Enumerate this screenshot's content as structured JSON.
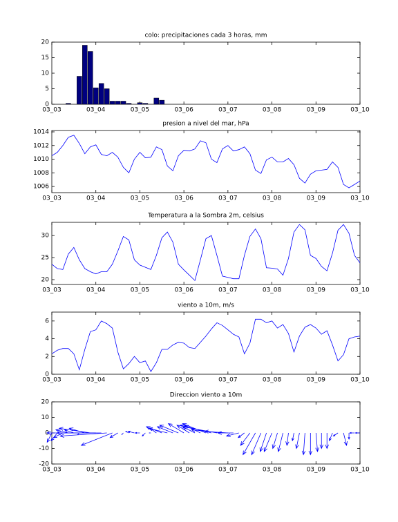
{
  "chart_data": [
    {
      "type": "bar",
      "title": "colo: precipitaciones cada 3 horas, mm",
      "color": "#000080",
      "x": [
        0.375,
        0.625,
        0.75,
        0.875,
        1,
        1.125,
        1.25,
        1.375,
        1.5,
        1.625,
        1.75,
        2,
        2.125,
        2.375,
        2.5
      ],
      "values": [
        0.3,
        9,
        19,
        17,
        5.3,
        6.7,
        5,
        1,
        1,
        1,
        0.3,
        0.5,
        0.3,
        2,
        1.3
      ],
      "xlim": [
        0,
        7
      ],
      "xticks": [
        {
          "value": 0,
          "label": "03_03"
        },
        {
          "value": 1,
          "label": "03_04"
        },
        {
          "value": 2,
          "label": "03_05"
        },
        {
          "value": 3,
          "label": "03_06"
        },
        {
          "value": 4,
          "label": "03_07"
        },
        {
          "value": 5,
          "label": "03_08"
        },
        {
          "value": 6,
          "label": "03_09"
        },
        {
          "value": 7,
          "label": "03_10"
        }
      ],
      "ylim": [
        0,
        20
      ],
      "yticks": [
        0,
        5,
        10,
        15,
        20
      ]
    },
    {
      "type": "line",
      "title": "presion a nivel del mar, hPa",
      "color": "#0000ff",
      "x": [
        0,
        0.125,
        0.25,
        0.375,
        0.5,
        0.625,
        0.75,
        0.875,
        1,
        1.125,
        1.25,
        1.375,
        1.5,
        1.625,
        1.75,
        1.875,
        2,
        2.125,
        2.25,
        2.375,
        2.5,
        2.625,
        2.75,
        2.875,
        3,
        3.125,
        3.25,
        3.375,
        3.5,
        3.625,
        3.75,
        3.875,
        4,
        4.125,
        4.25,
        4.375,
        4.5,
        4.625,
        4.75,
        4.875,
        5,
        5.125,
        5.25,
        5.375,
        5.5,
        5.625,
        5.75,
        5.875,
        6,
        6.125,
        6.25,
        6.375,
        6.5,
        6.625,
        6.75,
        6.875,
        7
      ],
      "values": [
        1010.5,
        1011,
        1012,
        1013.2,
        1013.5,
        1012.3,
        1010.8,
        1011.8,
        1012.1,
        1010.7,
        1010.5,
        1011,
        1010.3,
        1008.8,
        1008,
        1010,
        1011,
        1010.2,
        1010.3,
        1011.8,
        1011.4,
        1009,
        1008.3,
        1010.5,
        1011.3,
        1011.2,
        1011.5,
        1012.7,
        1012.4,
        1010,
        1009.5,
        1011.5,
        1012,
        1011.2,
        1011.4,
        1011.8,
        1010.8,
        1008.4,
        1007.9,
        1009.9,
        1010.3,
        1009.6,
        1009.6,
        1010.1,
        1009.2,
        1007.2,
        1006.5,
        1007.8,
        1008.3,
        1008.4,
        1008.5,
        1009.6,
        1008.8,
        1006.3,
        1005.8,
        1006.3,
        1006.8
      ],
      "xlim": [
        0,
        7
      ],
      "xticks": [
        {
          "value": 0,
          "label": "03_03"
        },
        {
          "value": 1,
          "label": "03_04"
        },
        {
          "value": 2,
          "label": "03_05"
        },
        {
          "value": 3,
          "label": "03_06"
        },
        {
          "value": 4,
          "label": "03_07"
        },
        {
          "value": 5,
          "label": "03_08"
        },
        {
          "value": 6,
          "label": "03_09"
        },
        {
          "value": 7,
          "label": "03_10"
        }
      ],
      "ylim": [
        1005.1,
        1014.2
      ],
      "yticks": [
        1006,
        1008,
        1010,
        1012,
        1014
      ]
    },
    {
      "type": "line",
      "title": "Temperatura a la Sombra 2m, celsius",
      "color": "#0000ff",
      "x": [
        0,
        0.125,
        0.25,
        0.375,
        0.5,
        0.625,
        0.75,
        0.875,
        1,
        1.125,
        1.25,
        1.375,
        1.5,
        1.625,
        1.75,
        1.875,
        2,
        2.125,
        2.25,
        2.375,
        2.5,
        2.625,
        2.75,
        2.875,
        3,
        3.125,
        3.25,
        3.375,
        3.5,
        3.625,
        3.75,
        3.875,
        4,
        4.125,
        4.25,
        4.375,
        4.5,
        4.625,
        4.75,
        4.875,
        5,
        5.125,
        5.25,
        5.375,
        5.5,
        5.625,
        5.75,
        5.875,
        6,
        6.125,
        6.25,
        6.375,
        6.5,
        6.625,
        6.75,
        6.875,
        7
      ],
      "values": [
        23.5,
        22.5,
        22.3,
        25.8,
        27.3,
        24.5,
        22.5,
        21.8,
        21.3,
        21.8,
        21.8,
        23.5,
        26.5,
        29.8,
        29,
        24.5,
        23.3,
        22.8,
        22.3,
        25.5,
        29.5,
        30.8,
        28.5,
        23.5,
        22.2,
        21,
        19.8,
        24.5,
        29.3,
        30,
        25.5,
        20.8,
        20.5,
        20.2,
        20.2,
        25.5,
        29.8,
        31.5,
        29.3,
        22.7,
        22.6,
        22.4,
        21,
        24.8,
        30.8,
        32.5,
        31.3,
        25.5,
        24.8,
        23,
        22,
        26,
        31.2,
        32.5,
        30.5,
        25.5,
        23.8
      ],
      "xlim": [
        0,
        7
      ],
      "xticks": [
        {
          "value": 0,
          "label": "03_03"
        },
        {
          "value": 1,
          "label": "03_04"
        },
        {
          "value": 2,
          "label": "03_05"
        },
        {
          "value": 3,
          "label": "03_06"
        },
        {
          "value": 4,
          "label": "03_07"
        },
        {
          "value": 5,
          "label": "03_08"
        },
        {
          "value": 6,
          "label": "03_09"
        },
        {
          "value": 7,
          "label": "03_10"
        }
      ],
      "ylim": [
        18.9,
        33
      ],
      "yticks": [
        20,
        25,
        30
      ]
    },
    {
      "type": "line",
      "title": "viento a 10m, m/s",
      "color": "#0000ff",
      "x": [
        0,
        0.125,
        0.25,
        0.375,
        0.5,
        0.625,
        0.75,
        0.875,
        1,
        1.125,
        1.25,
        1.375,
        1.5,
        1.625,
        1.75,
        1.875,
        2,
        2.125,
        2.25,
        2.375,
        2.5,
        2.625,
        2.75,
        2.875,
        3,
        3.125,
        3.25,
        3.375,
        3.5,
        3.625,
        3.75,
        3.875,
        4,
        4.125,
        4.25,
        4.375,
        4.5,
        4.625,
        4.75,
        4.875,
        5,
        5.125,
        5.25,
        5.375,
        5.5,
        5.625,
        5.75,
        5.875,
        6,
        6.125,
        6.25,
        6.375,
        6.5,
        6.625,
        6.75,
        6.875,
        7
      ],
      "values": [
        2.3,
        2.7,
        2.9,
        2.9,
        2.3,
        0.5,
        2.8,
        4.8,
        5.0,
        6.0,
        5.7,
        5.2,
        2.5,
        0.6,
        1.2,
        2.0,
        1.3,
        1.5,
        0.3,
        1.3,
        2.8,
        2.8,
        3.3,
        3.6,
        3.5,
        3.0,
        2.9,
        3.6,
        4.3,
        5.1,
        5.8,
        5.5,
        5.0,
        4.5,
        4.2,
        2.3,
        3.5,
        6.2,
        6.2,
        5.8,
        6.0,
        5.2,
        5.6,
        4.6,
        2.5,
        4.3,
        5.3,
        5.6,
        5.2,
        4.5,
        4.9,
        3.3,
        1.5,
        2.2,
        4.0,
        4.2,
        4.3
      ],
      "xlim": [
        0,
        7
      ],
      "xticks": [
        {
          "value": 0,
          "label": "03_03"
        },
        {
          "value": 1,
          "label": "03_04"
        },
        {
          "value": 2,
          "label": "03_05"
        },
        {
          "value": 3,
          "label": "03_06"
        },
        {
          "value": 4,
          "label": "03_07"
        },
        {
          "value": 5,
          "label": "03_08"
        },
        {
          "value": 6,
          "label": "03_09"
        },
        {
          "value": 7,
          "label": "03_10"
        }
      ],
      "ylim": [
        0,
        7
      ],
      "yticks": [
        0,
        2,
        4,
        6
      ]
    },
    {
      "type": "quiver",
      "title": "Direccion viento a 10m",
      "color": "#0000ff",
      "x": [
        0,
        0.125,
        0.25,
        0.375,
        0.5,
        0.625,
        0.75,
        0.875,
        1,
        1.125,
        1.25,
        1.375,
        1.5,
        1.625,
        1.75,
        1.875,
        2,
        2.125,
        2.25,
        2.375,
        2.5,
        2.625,
        2.75,
        2.875,
        3,
        3.125,
        3.25,
        3.375,
        3.5,
        3.625,
        3.75,
        3.875,
        4,
        4.125,
        4.25,
        4.375,
        4.5,
        4.625,
        4.75,
        4.875,
        5,
        5.125,
        5.25,
        5.375,
        5.5,
        5.625,
        5.75,
        5.875,
        6,
        6.125,
        6.25,
        6.375,
        6.5,
        6.625,
        6.75,
        6.875,
        7
      ],
      "u": [
        -3,
        -4,
        -6,
        -8,
        -6,
        -1,
        -10,
        -20,
        -25,
        -35,
        -30,
        -20,
        -5,
        -1,
        -2,
        -4,
        -3,
        -2,
        -1,
        -4,
        -10,
        -12,
        -10,
        -12,
        -10,
        -8,
        -8,
        -10,
        -15,
        -20,
        -22,
        -20,
        -15,
        -10,
        -8,
        -4,
        -6,
        -8,
        -6,
        -4,
        -5,
        -3,
        -3,
        -1,
        -1,
        -2,
        -1,
        0,
        1,
        0,
        0,
        -2,
        -3,
        2,
        0,
        -3,
        -3
      ],
      "v": [
        -6,
        -5,
        -3,
        2,
        2,
        -1,
        3,
        3,
        0,
        0,
        -2,
        -8,
        -3,
        -1,
        1,
        1,
        0,
        -2,
        0,
        3,
        4,
        3,
        4,
        5,
        6,
        5,
        4,
        5,
        6,
        5,
        4,
        2,
        1,
        0,
        -2,
        -3,
        -8,
        -14,
        -14,
        -12,
        -12,
        -10,
        -12,
        -8,
        -5,
        -10,
        -14,
        -14,
        -12,
        -10,
        -10,
        -5,
        -2,
        -8,
        -4,
        0,
        0
      ],
      "xlim": [
        0,
        7
      ],
      "xticks": [
        {
          "value": 0,
          "label": "03_03"
        },
        {
          "value": 1,
          "label": "03_04"
        },
        {
          "value": 2,
          "label": "03_05"
        },
        {
          "value": 3,
          "label": "03_06"
        },
        {
          "value": 4,
          "label": "03_07"
        },
        {
          "value": 5,
          "label": "03_08"
        },
        {
          "value": 6,
          "label": "03_09"
        },
        {
          "value": 7,
          "label": "03_10"
        }
      ],
      "ylim": [
        -20,
        20
      ],
      "yticks": [
        -20,
        -10,
        0,
        10,
        20
      ]
    }
  ]
}
